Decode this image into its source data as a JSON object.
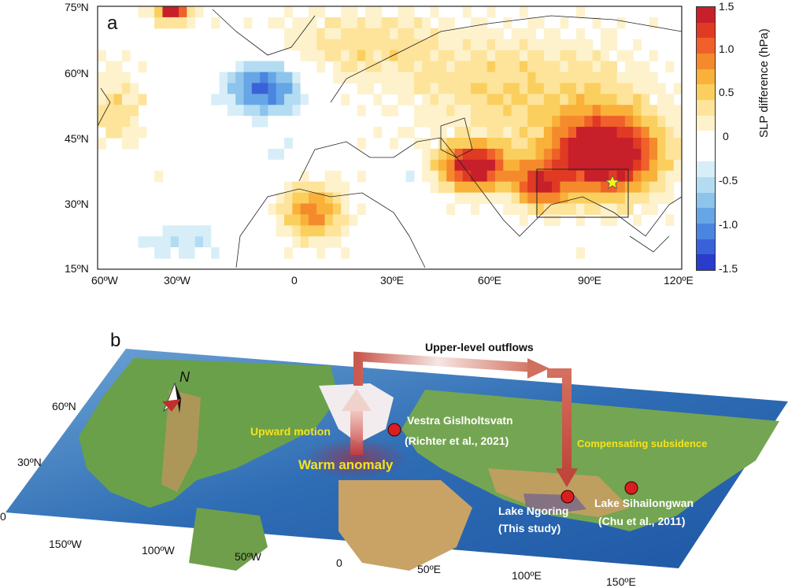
{
  "panel_a": {
    "letter": "a",
    "lat_ticks": [
      "75ºN",
      "60ºN",
      "45ºN",
      "30ºN",
      "15ºN"
    ],
    "lon_ticks": [
      "60ºW",
      "30ºW",
      "0",
      "30ºE",
      "60ºE",
      "90ºE",
      "120ºE"
    ],
    "colorbar": {
      "label": "SLP difference (hPa)",
      "ticks": [
        "1.5",
        "1.0",
        "0.5",
        "0",
        "-0.5",
        "-1.0",
        "-1.5"
      ],
      "colors": [
        "#c8202a",
        "#e03a24",
        "#f0602a",
        "#f58a2c",
        "#f9b13a",
        "#fbcf5e",
        "#fde49a",
        "#fdf2cc",
        "#ffffff",
        "#ffffff",
        "#d7eef8",
        "#b3dcf2",
        "#8cc4ec",
        "#66a6e6",
        "#4a86e0",
        "#3a62d8",
        "#2a3ccc"
      ],
      "range": [
        -1.5,
        1.5
      ]
    },
    "marker": "star-icon"
  },
  "panel_b": {
    "letter": "b",
    "lat_labels": [
      "60ºN",
      "30ºN",
      "0"
    ],
    "lon_labels": [
      "150ºW",
      "100ºW",
      "50ºW",
      "0",
      "50ºE",
      "100ºE",
      "150ºE"
    ],
    "annotations": {
      "upper": "Upper-level outflows",
      "upward": "Upward motion",
      "warm": "Warm anomaly",
      "subsidence": "Compensating subsidence"
    },
    "sites": [
      {
        "name": "Vestra Gislholtsvatn",
        "ref": "(Richter et al., 2021)"
      },
      {
        "name": "Lake Ngoring",
        "ref": "(This study)"
      },
      {
        "name": "Lake Sihailongwan",
        "ref": "(Chu et al., 2011)"
      }
    ],
    "north": "N"
  }
}
